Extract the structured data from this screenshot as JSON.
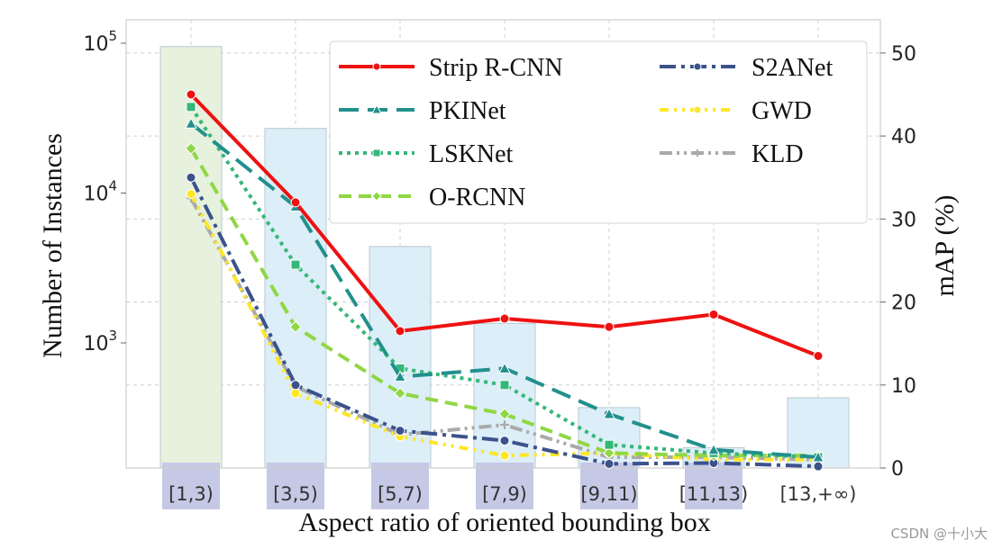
{
  "chart_data": {
    "type": "bar+line",
    "categories": [
      "[1,3)",
      "[3,5)",
      "[5,7)",
      "[7,9)",
      "[9,11)",
      "[11,13)",
      "[13,+∞)"
    ],
    "bars": {
      "name": "Number of Instances",
      "axis": "left",
      "scale": "log",
      "values": [
        95000,
        27000,
        4400,
        1350,
        370,
        200,
        430
      ],
      "colors": [
        "#e6f1de",
        "#dceef7",
        "#dceef7",
        "#dceef7",
        "#dceef7",
        "#dceef7",
        "#dceef7"
      ]
    },
    "xlabel": "Aspect ratio of oriented bounding box",
    "ylabel_left": "Number of Instances",
    "ylabel_right": "mAP (%)",
    "ylim_right": [
      0,
      54
    ],
    "left_ticks": [
      {
        "value": 1000,
        "base": "10",
        "exp": "3"
      },
      {
        "value": 10000,
        "base": "10",
        "exp": "4"
      },
      {
        "value": 100000,
        "base": "10",
        "exp": "5"
      }
    ],
    "right_ticks": [
      "0",
      "10",
      "20",
      "30",
      "40",
      "50"
    ],
    "series": [
      {
        "name": "Strip R-CNN",
        "color": "#ee1111",
        "values": [
          45,
          32,
          16.5,
          18,
          17,
          18.5,
          13.5
        ]
      },
      {
        "name": "PKINet",
        "color": "#21908d",
        "values": [
          41.5,
          31.5,
          11,
          12,
          6.5,
          2.2,
          1.3
        ]
      },
      {
        "name": "LSKNet",
        "color": "#35b779",
        "values": [
          43.5,
          24.5,
          12,
          10,
          2.8,
          1.8,
          1.3
        ]
      },
      {
        "name": "O-RCNN",
        "color": "#8fd744",
        "values": [
          38.5,
          17,
          9,
          6.5,
          1.8,
          1.5,
          1.5
        ]
      },
      {
        "name": "S2ANet",
        "color": "#3b528b",
        "values": [
          35,
          10,
          4.5,
          3.3,
          0.5,
          0.6,
          0.2
        ]
      },
      {
        "name": "GWD",
        "color": "#fde725",
        "values": [
          33,
          9,
          3.8,
          1.5,
          1.8,
          1,
          1
        ]
      },
      {
        "name": "KLD",
        "color": "#aaaaaa",
        "values": [
          32.5,
          9.8,
          4,
          5.2,
          1.3,
          1.3,
          1
        ]
      }
    ]
  },
  "watermark": "CSDN @十小大"
}
